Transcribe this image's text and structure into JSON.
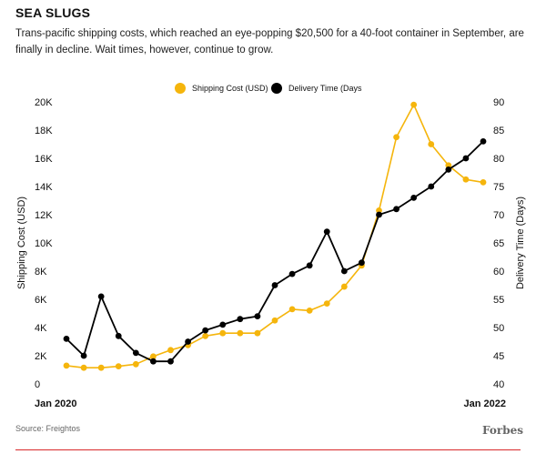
{
  "header": {
    "title": "SEA SLUGS",
    "subtitle": "Trans-pacific shipping costs, which reached an eye-popping $20,500 for a 40-foot container in September, are finally in decline. Wait times, however, continue to grow."
  },
  "footer": {
    "source": "Source: Freightos",
    "logo": "Forbes"
  },
  "colors": {
    "shipping": "#f5b50c",
    "delivery": "#000000",
    "rule": "#d9292b"
  },
  "chart_data": {
    "type": "line",
    "title": "",
    "x_labels": [
      "Jan 2020",
      "Jan 2022"
    ],
    "y_left": {
      "label": "Shipping Cost (USD)",
      "range": [
        0,
        20000
      ],
      "ticks": [
        0,
        2000,
        4000,
        6000,
        8000,
        10000,
        12000,
        14000,
        16000,
        18000,
        20000
      ],
      "tick_labels": [
        "0",
        "2K",
        "4K",
        "6K",
        "8K",
        "10K",
        "12K",
        "14K",
        "16K",
        "18K",
        "20K"
      ]
    },
    "y_right": {
      "label": "Delivery Time (Days)",
      "range": [
        40,
        90
      ],
      "ticks": [
        40,
        45,
        50,
        55,
        60,
        65,
        70,
        75,
        80,
        85,
        90
      ],
      "tick_labels": [
        "40",
        "45",
        "50",
        "55",
        "60",
        "65",
        "70",
        "75",
        "80",
        "85",
        "90"
      ]
    },
    "legend": "top",
    "series": [
      {
        "name": "Shipping Cost (USD)",
        "axis": "left",
        "values": [
          1300,
          1150,
          1150,
          1250,
          1400,
          1950,
          2400,
          2750,
          3400,
          3600,
          3600,
          3600,
          4500,
          5300,
          5200,
          5700,
          6900,
          8400,
          12300,
          17500,
          19800,
          17000,
          15500,
          14500,
          14300
        ]
      },
      {
        "name": "Delivery Time (Days",
        "axis": "right",
        "values": [
          48,
          45,
          55.5,
          48.5,
          45.5,
          44,
          44,
          47.5,
          49.5,
          50.5,
          51.5,
          52,
          57.5,
          59.5,
          61,
          67,
          60,
          61.5,
          70,
          71,
          73,
          75,
          78,
          80,
          83
        ]
      }
    ]
  }
}
